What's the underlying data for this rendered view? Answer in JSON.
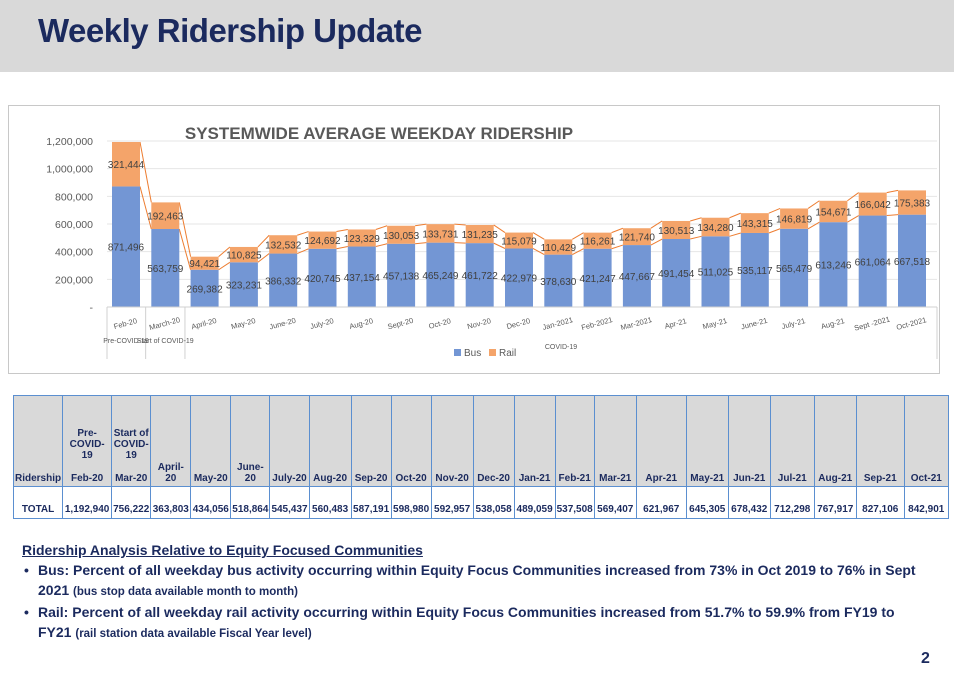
{
  "header": {
    "title": "Weekly Ridership Update"
  },
  "chart_data": {
    "type": "bar",
    "stacked": true,
    "title": "SYSTEMWIDE AVERAGE WEEKDAY RIDERSHIP",
    "categories": [
      "Feb-20",
      "March-20",
      "April-20",
      "May-20",
      "June-20",
      "July-20",
      "Aug-20",
      "Sept-20",
      "Oct-20",
      "Nov-20",
      "Dec-20",
      "Jan-2021",
      "Feb-2021",
      "Mar-2021",
      "Apr-21",
      "May-21",
      "June-21",
      "July-21",
      "Aug-21",
      "Sept -2021",
      "Oct-2021"
    ],
    "series": [
      {
        "name": "Bus",
        "color": "#7396d4",
        "values": [
          871496,
          563759,
          269382,
          323231,
          386332,
          420745,
          437154,
          457138,
          465249,
          461722,
          422979,
          378630,
          421247,
          447667,
          491454,
          511025,
          535117,
          565479,
          613246,
          661064,
          667518
        ]
      },
      {
        "name": "Rail",
        "color": "#f4a46a",
        "values": [
          321444,
          192463,
          94421,
          110825,
          132532,
          124692,
          123329,
          130053,
          133731,
          131235,
          115079,
          110429,
          116261,
          121740,
          130513,
          134280,
          143315,
          146819,
          154671,
          166042,
          175383
        ]
      }
    ],
    "ylim": [
      0,
      1200000
    ],
    "yticks": [
      0,
      200000,
      400000,
      600000,
      800000,
      1000000,
      1200000
    ],
    "ytick_labels": [
      "-",
      "200,000",
      "400,000",
      "600,000",
      "800,000",
      "1,000,000",
      "1,200,000"
    ],
    "group_labels": [
      {
        "label": "Pre-COVID-19",
        "categories": [
          "Feb-20"
        ]
      },
      {
        "label": "Start of COVID-19",
        "categories": [
          "March-20"
        ]
      },
      {
        "label": "COVID-19",
        "categories": [
          "April-20",
          "Oct-2021"
        ]
      }
    ],
    "legend_position": "bottom",
    "grid": true,
    "series_lines_color": "#ed7d31"
  },
  "table": {
    "header_label": "Ridership",
    "row_label": "TOTAL",
    "columns": [
      {
        "top": "Pre-COVID-19",
        "month": "Feb-20",
        "value": "1,192,940"
      },
      {
        "top": "Start of COVID-19",
        "month": "Mar-20",
        "value": "756,222"
      },
      {
        "top": "",
        "month": "April-20",
        "value": "363,803"
      },
      {
        "top": "",
        "month": "May-20",
        "value": "434,056"
      },
      {
        "top": "",
        "month": "June-20",
        "value": "518,864"
      },
      {
        "top": "",
        "month": "July-20",
        "value": "545,437"
      },
      {
        "top": "",
        "month": "Aug-20",
        "value": "560,483"
      },
      {
        "top": "",
        "month": "Sep-20",
        "value": "587,191"
      },
      {
        "top": "",
        "month": "Oct-20",
        "value": "598,980"
      },
      {
        "top": "",
        "month": "Nov-20",
        "value": "592,957"
      },
      {
        "top": "",
        "month": "Dec-20",
        "value": "538,058"
      },
      {
        "top": "",
        "month": "Jan-21",
        "value": "489,059"
      },
      {
        "top": "",
        "month": "Feb-21",
        "value": "537,508"
      },
      {
        "top": "",
        "month": "Mar-21",
        "value": "569,407"
      },
      {
        "top": "",
        "month": "Apr-21",
        "value": "621,967"
      },
      {
        "top": "",
        "month": "May-21",
        "value": "645,305"
      },
      {
        "top": "",
        "month": "Jun-21",
        "value": "678,432"
      },
      {
        "top": "",
        "month": "Jul-21",
        "value": "712,298"
      },
      {
        "top": "",
        "month": "Aug-21",
        "value": "767,917"
      },
      {
        "top": "",
        "month": "Sep-21",
        "value": "827,106"
      },
      {
        "top": "",
        "month": "Oct-21",
        "value": "842,901"
      }
    ]
  },
  "analysis": {
    "heading": "Ridership Analysis Relative to Equity Focused Communities",
    "bus_main": "Bus: Percent of all weekday bus activity occurring within Equity Focus Communities increased from 73% in Oct 2019 to 76% in Sept 2021",
    "bus_note": "(bus stop data available month to month)",
    "rail_main": "Rail: Percent of all weekday rail activity occurring within Equity Focus Communities increased from 51.7% to 59.9% from FY19 to FY21",
    "rail_note": "(rail station data available Fiscal Year level)"
  },
  "page_number": "2"
}
